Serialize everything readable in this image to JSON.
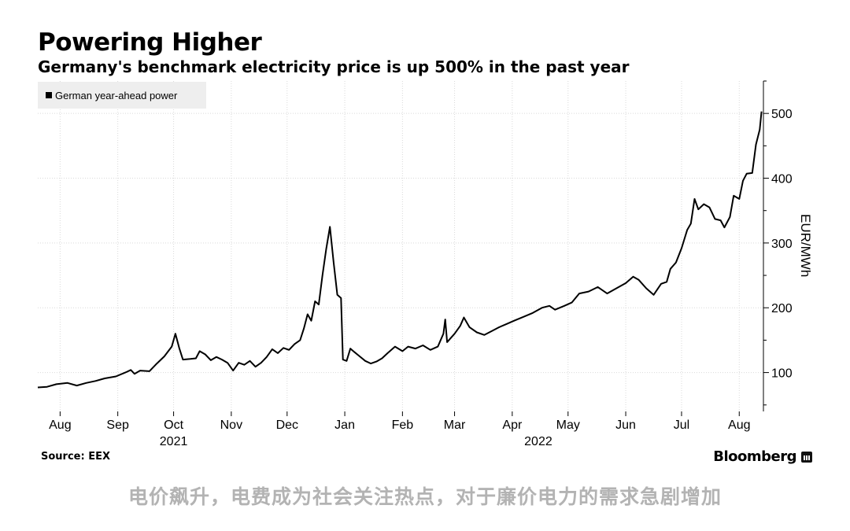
{
  "header": {
    "title": "Powering Higher",
    "subtitle": "Germany's benchmark electricity price is up 500% in the past year"
  },
  "footer": {
    "source": "Source: EEX",
    "brand": "Bloomberg",
    "caption": "电价飙升，电费成为社会关注热点，对于廉价电力的需求急剧增加"
  },
  "colors": {
    "line": "#000000",
    "grid": "#d9d9d9",
    "legend_bg": "#eeeeee"
  },
  "chart_data": {
    "type": "line",
    "title": "Powering Higher",
    "subtitle": "Germany's benchmark electricity price is up 500% in the past year",
    "ylabel": "EUR/MWh",
    "ylim": [
      40,
      550
    ],
    "y_ticks": [
      100,
      200,
      300,
      400,
      500
    ],
    "xlim": [
      "2021-07-20",
      "2022-08-14"
    ],
    "x_ticks": [
      {
        "date": "2021-08-01",
        "label": "Aug"
      },
      {
        "date": "2021-09-01",
        "label": "Sep"
      },
      {
        "date": "2021-10-01",
        "label": "Oct"
      },
      {
        "date": "2021-11-01",
        "label": "Nov"
      },
      {
        "date": "2021-12-01",
        "label": "Dec"
      },
      {
        "date": "2022-01-01",
        "label": "Jan"
      },
      {
        "date": "2022-02-01",
        "label": "Feb"
      },
      {
        "date": "2022-03-01",
        "label": "Mar"
      },
      {
        "date": "2022-04-01",
        "label": "Apr"
      },
      {
        "date": "2022-05-01",
        "label": "May"
      },
      {
        "date": "2022-06-01",
        "label": "Jun"
      },
      {
        "date": "2022-07-01",
        "label": "Jul"
      },
      {
        "date": "2022-08-01",
        "label": "Aug"
      }
    ],
    "year_labels": [
      {
        "date": "2021-10-01",
        "label": "2021"
      },
      {
        "date": "2022-04-15",
        "label": "2022"
      }
    ],
    "grid": true,
    "legend_position": "top-left",
    "series": [
      {
        "name": "German year-ahead power",
        "color": "#000000",
        "points": [
          [
            "2021-07-20",
            77
          ],
          [
            "2021-07-25",
            78
          ],
          [
            "2021-07-30",
            82
          ],
          [
            "2021-08-05",
            84
          ],
          [
            "2021-08-10",
            80
          ],
          [
            "2021-08-15",
            84
          ],
          [
            "2021-08-20",
            87
          ],
          [
            "2021-08-25",
            91
          ],
          [
            "2021-08-31",
            94
          ],
          [
            "2021-09-05",
            100
          ],
          [
            "2021-09-08",
            104
          ],
          [
            "2021-09-10",
            98
          ],
          [
            "2021-09-13",
            103
          ],
          [
            "2021-09-18",
            102
          ],
          [
            "2021-09-22",
            114
          ],
          [
            "2021-09-26",
            125
          ],
          [
            "2021-09-30",
            140
          ],
          [
            "2021-10-02",
            160
          ],
          [
            "2021-10-04",
            138
          ],
          [
            "2021-10-06",
            120
          ],
          [
            "2021-10-10",
            121
          ],
          [
            "2021-10-13",
            122
          ],
          [
            "2021-10-15",
            133
          ],
          [
            "2021-10-18",
            128
          ],
          [
            "2021-10-21",
            119
          ],
          [
            "2021-10-24",
            124
          ],
          [
            "2021-10-27",
            120
          ],
          [
            "2021-10-30",
            115
          ],
          [
            "2021-11-02",
            103
          ],
          [
            "2021-11-05",
            115
          ],
          [
            "2021-11-08",
            112
          ],
          [
            "2021-11-11",
            118
          ],
          [
            "2021-11-14",
            109
          ],
          [
            "2021-11-17",
            115
          ],
          [
            "2021-11-20",
            124
          ],
          [
            "2021-11-23",
            136
          ],
          [
            "2021-11-26",
            130
          ],
          [
            "2021-11-29",
            138
          ],
          [
            "2021-12-02",
            135
          ],
          [
            "2021-12-05",
            144
          ],
          [
            "2021-12-08",
            150
          ],
          [
            "2021-12-10",
            168
          ],
          [
            "2021-12-12",
            190
          ],
          [
            "2021-12-14",
            180
          ],
          [
            "2021-12-16",
            210
          ],
          [
            "2021-12-18",
            205
          ],
          [
            "2021-12-20",
            250
          ],
          [
            "2021-12-22",
            290
          ],
          [
            "2021-12-24",
            325
          ],
          [
            "2021-12-26",
            270
          ],
          [
            "2021-12-28",
            220
          ],
          [
            "2021-12-30",
            215
          ],
          [
            "2021-12-31",
            120
          ],
          [
            "2022-01-02",
            118
          ],
          [
            "2022-01-04",
            137
          ],
          [
            "2022-01-06",
            132
          ],
          [
            "2022-01-09",
            125
          ],
          [
            "2022-01-12",
            118
          ],
          [
            "2022-01-15",
            114
          ],
          [
            "2022-01-18",
            117
          ],
          [
            "2022-01-21",
            122
          ],
          [
            "2022-01-24",
            130
          ],
          [
            "2022-01-28",
            140
          ],
          [
            "2022-02-01",
            133
          ],
          [
            "2022-02-04",
            140
          ],
          [
            "2022-02-08",
            137
          ],
          [
            "2022-02-12",
            142
          ],
          [
            "2022-02-16",
            135
          ],
          [
            "2022-02-20",
            140
          ],
          [
            "2022-02-23",
            160
          ],
          [
            "2022-02-24",
            182
          ],
          [
            "2022-02-25",
            147
          ],
          [
            "2022-03-01",
            160
          ],
          [
            "2022-03-04",
            172
          ],
          [
            "2022-03-06",
            185
          ],
          [
            "2022-03-09",
            170
          ],
          [
            "2022-03-13",
            162
          ],
          [
            "2022-03-17",
            158
          ],
          [
            "2022-03-21",
            164
          ],
          [
            "2022-03-25",
            170
          ],
          [
            "2022-03-29",
            175
          ],
          [
            "2022-04-02",
            180
          ],
          [
            "2022-04-07",
            186
          ],
          [
            "2022-04-12",
            192
          ],
          [
            "2022-04-17",
            200
          ],
          [
            "2022-04-21",
            203
          ],
          [
            "2022-04-24",
            197
          ],
          [
            "2022-04-29",
            203
          ],
          [
            "2022-05-03",
            208
          ],
          [
            "2022-05-07",
            222
          ],
          [
            "2022-05-12",
            225
          ],
          [
            "2022-05-17",
            232
          ],
          [
            "2022-05-22",
            222
          ],
          [
            "2022-05-27",
            230
          ],
          [
            "2022-06-01",
            238
          ],
          [
            "2022-06-05",
            248
          ],
          [
            "2022-06-08",
            243
          ],
          [
            "2022-06-12",
            230
          ],
          [
            "2022-06-16",
            220
          ],
          [
            "2022-06-20",
            237
          ],
          [
            "2022-06-23",
            240
          ],
          [
            "2022-06-25",
            260
          ],
          [
            "2022-06-28",
            270
          ],
          [
            "2022-07-01",
            292
          ],
          [
            "2022-07-04",
            320
          ],
          [
            "2022-07-06",
            330
          ],
          [
            "2022-07-08",
            368
          ],
          [
            "2022-07-10",
            352
          ],
          [
            "2022-07-13",
            360
          ],
          [
            "2022-07-16",
            355
          ],
          [
            "2022-07-19",
            337
          ],
          [
            "2022-07-22",
            335
          ],
          [
            "2022-07-24",
            324
          ],
          [
            "2022-07-27",
            340
          ],
          [
            "2022-07-29",
            373
          ],
          [
            "2022-08-01",
            368
          ],
          [
            "2022-08-03",
            396
          ],
          [
            "2022-08-05",
            407
          ],
          [
            "2022-08-08",
            408
          ],
          [
            "2022-08-10",
            452
          ],
          [
            "2022-08-12",
            475
          ],
          [
            "2022-08-13",
            503
          ]
        ]
      }
    ]
  }
}
